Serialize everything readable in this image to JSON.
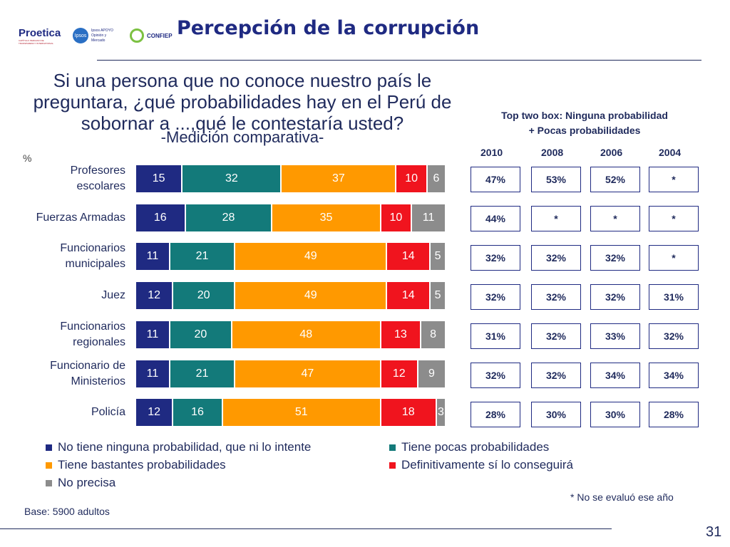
{
  "header": {
    "title": "Percepción de la corrupción",
    "logos": [
      {
        "name": "proetica-logo",
        "text": "Proetica",
        "subtext": "CAPÍTULO PERUANO DE TRANSPARENCY INTERNATIONAL"
      },
      {
        "name": "ipsos-logo",
        "text": "Ipsos",
        "subtext": "Ipsos APOYO Opinión y Mercado"
      },
      {
        "name": "confiep-logo",
        "text": "CONFIEP"
      }
    ]
  },
  "chart_data": {
    "type": "bar",
    "orientation": "horizontal-stacked",
    "title": "Si una persona que no conoce nuestro país le preguntara, ¿qué probabilidades hay en el Perú de sobornar a ...,qué le contestaría usted?",
    "subtitle": "-Medición comparativa-",
    "unit_label": "%",
    "categories": [
      [
        "Profesores",
        "escolares"
      ],
      [
        "Fuerzas Armadas"
      ],
      [
        "Funcionarios",
        "municipales"
      ],
      [
        "Juez"
      ],
      [
        "Funcionarios",
        "regionales"
      ],
      [
        "Funcionario de",
        "Ministerios"
      ],
      [
        "Policía"
      ]
    ],
    "series": [
      {
        "name": "No tiene ninguna probabilidad, que ni lo intente",
        "color": "#1f2a82",
        "values": [
          15,
          16,
          11,
          12,
          11,
          11,
          12
        ]
      },
      {
        "name": "Tiene pocas probabilidades",
        "color": "#137a7a",
        "values": [
          32,
          28,
          21,
          20,
          20,
          21,
          16
        ]
      },
      {
        "name": "Tiene bastantes probabilidades",
        "color": "#ff9900",
        "values": [
          37,
          35,
          49,
          49,
          48,
          47,
          51
        ]
      },
      {
        "name": "Definitivamente sí lo conseguirá",
        "color": "#f0141e",
        "values": [
          10,
          10,
          14,
          14,
          13,
          12,
          18
        ]
      },
      {
        "name": "No precisa",
        "color": "#8c8c8c",
        "values": [
          6,
          11,
          5,
          5,
          8,
          9,
          3
        ]
      }
    ],
    "legend_placement": "bottom",
    "top_two_box": {
      "title": [
        "Top two box: Ninguna probabilidad",
        "+ Pocas probabilidades"
      ],
      "years": [
        "2010",
        "2008",
        "2006",
        "2004"
      ],
      "values": [
        [
          "47%",
          "53%",
          "52%",
          "*"
        ],
        [
          "44%",
          "*",
          "*",
          "*"
        ],
        [
          "32%",
          "32%",
          "32%",
          "*"
        ],
        [
          "32%",
          "32%",
          "32%",
          "31%"
        ],
        [
          "31%",
          "32%",
          "33%",
          "32%"
        ],
        [
          "32%",
          "32%",
          "34%",
          "34%"
        ],
        [
          "28%",
          "30%",
          "30%",
          "28%"
        ]
      ]
    }
  },
  "footer": {
    "note": "* No se evaluó ese año",
    "base": "Base: 5900 adultos",
    "page_number": "31"
  }
}
